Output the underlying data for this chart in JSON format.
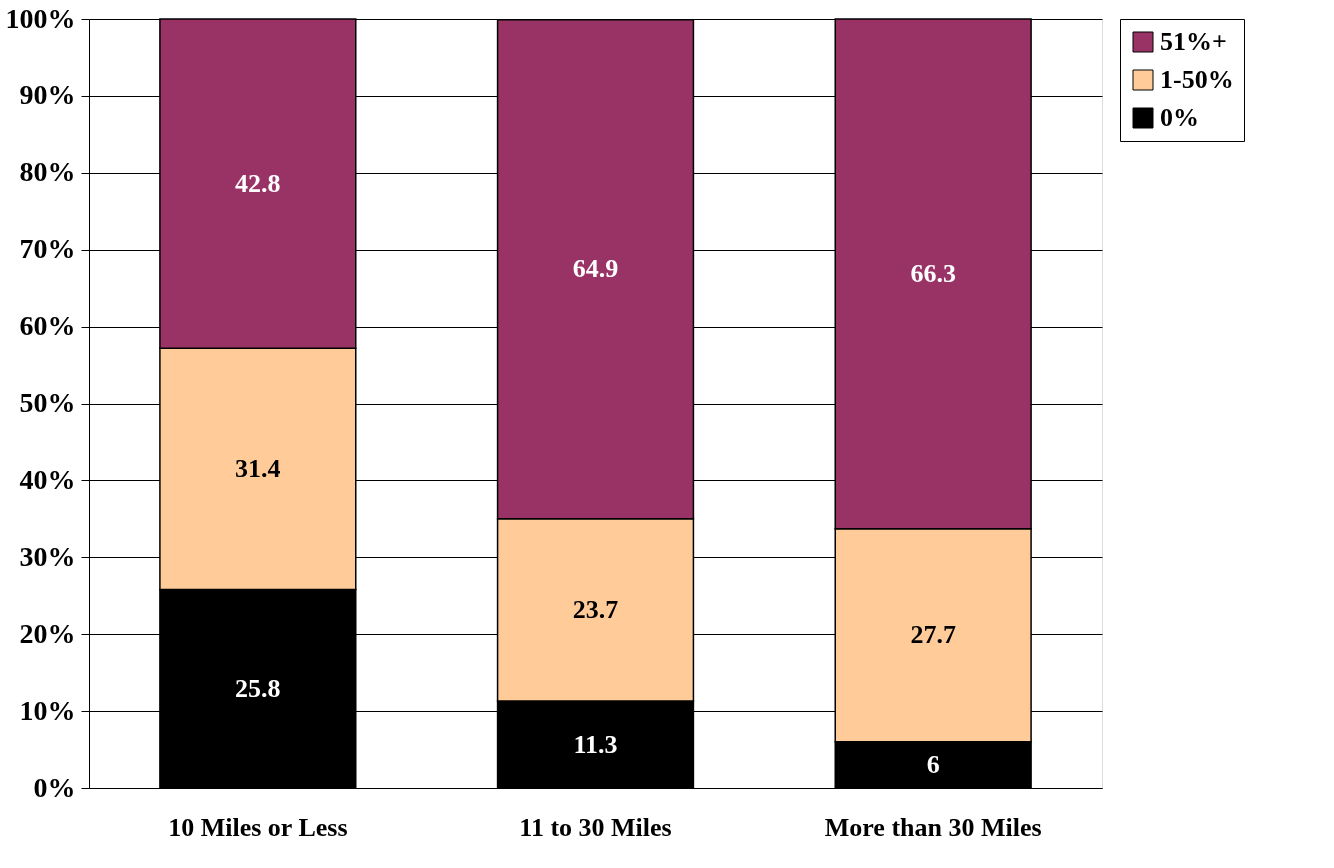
{
  "chart_data": {
    "type": "bar",
    "stacked": true,
    "categories": [
      "10 Miles or Less",
      "11 to 30 Miles",
      "More than 30 Miles"
    ],
    "series": [
      {
        "name": "0%",
        "color": "#000000",
        "values": [
          25.8,
          11.3,
          6
        ]
      },
      {
        "name": "1-50%",
        "color": "#ffcc99",
        "values": [
          31.4,
          23.7,
          27.7
        ]
      },
      {
        "name": "51%+",
        "color": "#993366",
        "values": [
          42.8,
          64.9,
          66.3
        ]
      }
    ],
    "ylim": [
      0,
      100
    ],
    "yticks": [
      {
        "value": 0,
        "label": "0%"
      },
      {
        "value": 10,
        "label": "10%"
      },
      {
        "value": 20,
        "label": "20%"
      },
      {
        "value": 30,
        "label": "30%"
      },
      {
        "value": 40,
        "label": "40%"
      },
      {
        "value": 50,
        "label": "50%"
      },
      {
        "value": 60,
        "label": "60%"
      },
      {
        "value": 70,
        "label": "70%"
      },
      {
        "value": 80,
        "label": "80%"
      },
      {
        "value": 90,
        "label": "90%"
      },
      {
        "value": 100,
        "label": "100%"
      }
    ],
    "grid": "y",
    "legend": "right",
    "data_labels": true
  }
}
